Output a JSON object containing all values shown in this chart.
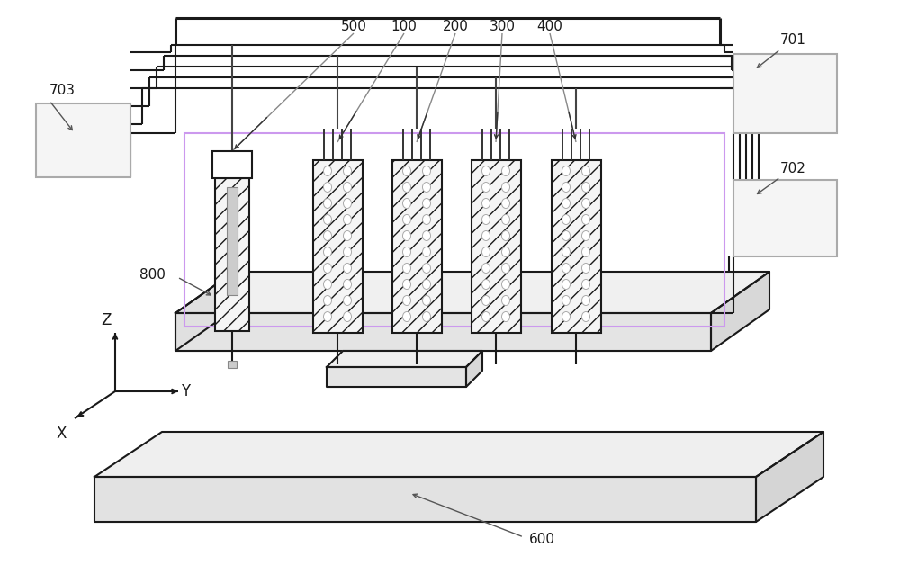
{
  "bg_color": "#ffffff",
  "lc": "#1a1a1a",
  "gray1": "#e8e8e8",
  "gray2": "#d8d8d8",
  "gray3": "#f2f2f2",
  "purple": "#cc99ee",
  "green": "#88bb88",
  "figsize": [
    10.0,
    6.38
  ],
  "dpi": 100,
  "labels": {
    "500": "500",
    "100": "100",
    "200": "200",
    "300": "300",
    "400": "400",
    "600": "600",
    "701": "701",
    "702": "702",
    "703": "703",
    "800": "800",
    "X": "X",
    "Y": "Y",
    "Z": "Z"
  }
}
